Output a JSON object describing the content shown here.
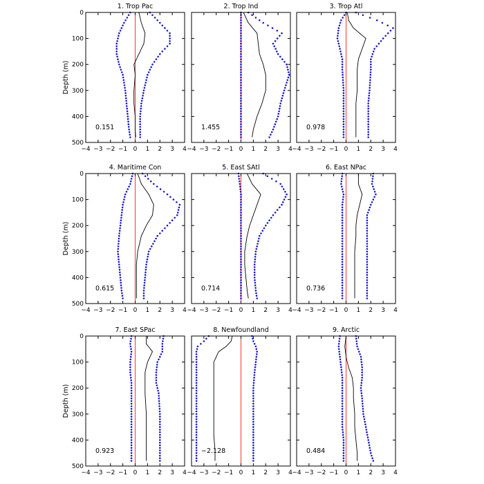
{
  "figure": {
    "ylabel": "Depth (m)",
    "x_ticks": [
      "−4",
      "−3",
      "−2",
      "−1",
      "0",
      "1",
      "2",
      "3",
      "4"
    ],
    "y_ticks": [
      "0",
      "100",
      "200",
      "300",
      "400",
      "500"
    ],
    "colors": {
      "mean_line": "#000000",
      "spread_dots": "#1a1acc",
      "zero_line": "#ff3030"
    }
  },
  "chart_data": {
    "type": "line",
    "xlim": [
      -4,
      4
    ],
    "ylim": [
      500,
      0
    ],
    "ylabel": "Depth (m)",
    "grid": false,
    "panels": [
      {
        "title": "1. Trop Pac",
        "annotation": "0.151",
        "depth": [
          0,
          40,
          80,
          120,
          160,
          200,
          240,
          300,
          350,
          400,
          450,
          480
        ],
        "mean": [
          0.3,
          0.5,
          0.8,
          0.7,
          0.3,
          -0.1,
          0.0,
          -0.1,
          -0.1,
          0.0,
          0.0,
          0.05
        ],
        "lower": [
          -0.4,
          -0.9,
          -1.3,
          -1.5,
          -1.5,
          -1.3,
          -1.0,
          -0.8,
          -0.7,
          -0.6,
          -0.5,
          -0.4
        ],
        "upper": [
          1.2,
          2.0,
          2.8,
          2.8,
          2.0,
          1.4,
          1.0,
          0.7,
          0.5,
          0.4,
          0.4,
          0.4
        ]
      },
      {
        "title": "2. Trop Ind",
        "annotation": "1.455",
        "depth": [
          0,
          40,
          80,
          120,
          160,
          200,
          240,
          300,
          350,
          400,
          450,
          480
        ],
        "mean": [
          0.2,
          0.6,
          1.3,
          1.4,
          1.5,
          1.8,
          2.0,
          2.0,
          1.7,
          1.3,
          1.0,
          0.9
        ],
        "lower": [
          0.0,
          0.0,
          0.0,
          0.0,
          0.0,
          0.0,
          0.0,
          0.0,
          0.0,
          0.0,
          0.0,
          0.0
        ],
        "upper": [
          0.6,
          1.8,
          3.3,
          2.6,
          3.0,
          3.7,
          3.9,
          3.5,
          3.2,
          3.0,
          2.6,
          2.3
        ]
      },
      {
        "title": "3. Trop Atl",
        "annotation": "0.978",
        "depth": [
          0,
          30,
          60,
          100,
          140,
          180,
          220,
          300,
          350,
          400,
          450,
          480
        ],
        "mean": [
          0.1,
          0.2,
          0.6,
          1.6,
          1.3,
          1.0,
          0.9,
          0.9,
          0.8,
          0.8,
          0.8,
          0.8
        ],
        "lower": [
          0.0,
          -0.4,
          -0.6,
          -0.7,
          -0.5,
          -0.3,
          -0.3,
          -0.2,
          -0.2,
          -0.2,
          -0.2,
          -0.2
        ],
        "upper": [
          0.8,
          2.5,
          3.8,
          3.0,
          2.3,
          2.0,
          2.0,
          1.9,
          1.8,
          1.8,
          1.8,
          1.8
        ]
      },
      {
        "title": "4. Maritime Con",
        "annotation": "0.615",
        "depth": [
          0,
          40,
          80,
          120,
          160,
          200,
          240,
          300,
          350,
          400,
          450,
          480
        ],
        "mean": [
          0.2,
          0.5,
          1.1,
          1.5,
          1.4,
          0.9,
          0.5,
          0.2,
          0.1,
          0.1,
          0.1,
          0.1
        ],
        "lower": [
          -0.2,
          -0.4,
          -0.8,
          -1.0,
          -1.1,
          -1.2,
          -1.3,
          -1.4,
          -1.3,
          -1.2,
          -1.1,
          -1.0
        ],
        "upper": [
          0.6,
          1.5,
          2.6,
          3.6,
          3.4,
          2.6,
          1.8,
          1.1,
          0.9,
          0.8,
          0.7,
          0.7
        ]
      },
      {
        "title": "5. East SAtl",
        "annotation": "0.714",
        "depth": [
          0,
          40,
          80,
          120,
          160,
          200,
          240,
          300,
          350,
          400,
          450,
          480
        ],
        "mean": [
          0.5,
          0.9,
          1.6,
          1.3,
          1.0,
          0.7,
          0.5,
          0.3,
          0.3,
          0.4,
          0.5,
          0.6
        ],
        "lower": [
          -0.2,
          -0.1,
          0.0,
          0.0,
          0.0,
          0.0,
          0.0,
          0.0,
          0.0,
          0.0,
          0.0,
          0.0
        ],
        "upper": [
          1.8,
          3.2,
          3.7,
          3.3,
          2.6,
          2.0,
          1.5,
          1.2,
          1.1,
          1.1,
          1.2,
          1.3
        ]
      },
      {
        "title": "6. East NPac",
        "annotation": "0.736",
        "depth": [
          0,
          40,
          80,
          120,
          160,
          200,
          240,
          300,
          350,
          400,
          450,
          480
        ],
        "mean": [
          1.0,
          1.0,
          1.3,
          1.1,
          0.9,
          0.8,
          0.8,
          0.7,
          0.7,
          0.7,
          0.7,
          0.7
        ],
        "lower": [
          -0.3,
          -0.4,
          -0.2,
          -0.3,
          -0.3,
          -0.3,
          -0.3,
          -0.3,
          -0.3,
          -0.3,
          -0.3,
          -0.3
        ],
        "upper": [
          2.2,
          2.1,
          2.4,
          2.0,
          1.7,
          1.7,
          1.7,
          1.7,
          1.7,
          1.7,
          1.7,
          1.7
        ]
      },
      {
        "title": "7. East SPac",
        "annotation": "0.923",
        "depth": [
          0,
          30,
          60,
          100,
          140,
          180,
          220,
          300,
          350,
          400,
          450,
          480
        ],
        "mean": [
          0.9,
          0.9,
          1.4,
          1.0,
          0.8,
          0.8,
          0.8,
          0.9,
          0.9,
          0.9,
          0.9,
          0.9
        ],
        "lower": [
          -0.3,
          -0.4,
          -0.3,
          -0.4,
          -0.4,
          -0.3,
          -0.3,
          -0.3,
          -0.3,
          -0.3,
          -0.3,
          -0.3
        ],
        "upper": [
          2.3,
          2.2,
          2.2,
          1.8,
          1.7,
          1.7,
          1.9,
          2.0,
          2.0,
          2.0,
          2.0,
          2.0
        ]
      },
      {
        "title": "8. Newfoundland",
        "annotation": "−2.128",
        "depth": [
          0,
          20,
          40,
          60,
          100,
          140,
          200,
          260,
          320,
          380,
          440,
          480
        ],
        "mean": [
          -0.7,
          -0.8,
          -1.2,
          -1.8,
          -2.2,
          -2.2,
          -2.2,
          -2.2,
          -2.2,
          -2.2,
          -2.1,
          -2.1
        ],
        "lower": [
          -2.6,
          -3.0,
          -3.5,
          -3.6,
          -3.6,
          -3.6,
          -3.6,
          -3.6,
          -3.6,
          -3.6,
          -3.6,
          -3.6
        ],
        "upper": [
          0.9,
          1.0,
          1.2,
          1.3,
          1.2,
          1.1,
          1.0,
          1.0,
          1.0,
          1.0,
          1.0,
          1.0
        ]
      },
      {
        "title": "9. Arctic",
        "annotation": "0.484",
        "depth": [
          0,
          40,
          80,
          120,
          160,
          200,
          240,
          300,
          350,
          400,
          450,
          480
        ],
        "mean": [
          0.0,
          -0.1,
          0.0,
          0.2,
          0.5,
          0.6,
          0.6,
          0.7,
          0.7,
          0.8,
          0.9,
          0.9
        ],
        "lower": [
          -0.5,
          -0.6,
          -0.5,
          -0.4,
          -0.3,
          -0.3,
          -0.3,
          -0.3,
          -0.3,
          -0.2,
          -0.2,
          -0.2
        ],
        "upper": [
          0.8,
          0.9,
          1.2,
          1.3,
          1.3,
          1.2,
          1.3,
          1.4,
          1.6,
          1.8,
          2.0,
          2.2
        ]
      }
    ]
  }
}
